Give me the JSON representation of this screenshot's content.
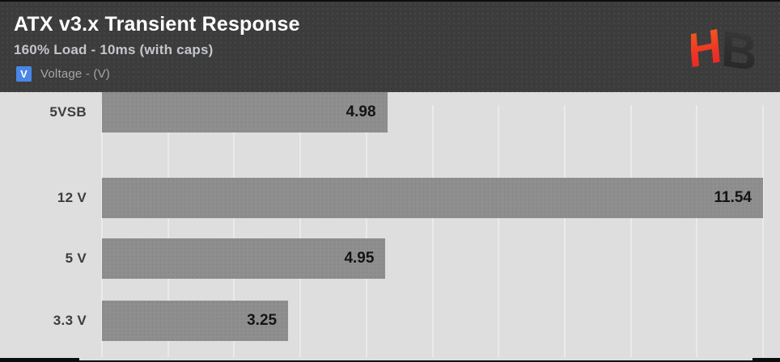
{
  "header": {
    "title": "ATX v3.x Transient Response",
    "subtitle": "160% Load - 10ms (with caps)",
    "legend": {
      "swatch_label": "V",
      "label": "Voltage - (V)"
    },
    "logo_text": "HB"
  },
  "colors": {
    "header_bg": "#3c3c3c",
    "chart_bg": "#dedede",
    "gridline": "#eaeaea",
    "bar_color": "#8f8f8f",
    "accent_blue": "#4a86e8",
    "category_text": "#3d3d3d",
    "value_text": "#141414",
    "logo_orange": "#f4631e",
    "logo_red": "#e61e2a",
    "logo_dark": "#303030"
  },
  "chart_data": {
    "type": "bar",
    "orientation": "horizontal",
    "title": "ATX v3.x Transient Response",
    "subtitle": "160% Load - 10ms (with caps)",
    "series_label": "Voltage - (V)",
    "categories": [
      "12 V",
      "5 V",
      "3.3 V",
      "5VSB"
    ],
    "values": [
      11.54,
      4.95,
      3.25,
      4.98
    ],
    "value_labels": [
      "11.54",
      "4.95",
      "3.25",
      "4.98"
    ],
    "xlabel": "",
    "ylabel": "",
    "xlim": [
      0,
      11.54
    ],
    "gridline_divisions": 10,
    "grid": "vertical-gridlines-only",
    "axis_tick_labels": "none",
    "legend_position": "top-left-header",
    "value_label_position": "inside-end"
  }
}
